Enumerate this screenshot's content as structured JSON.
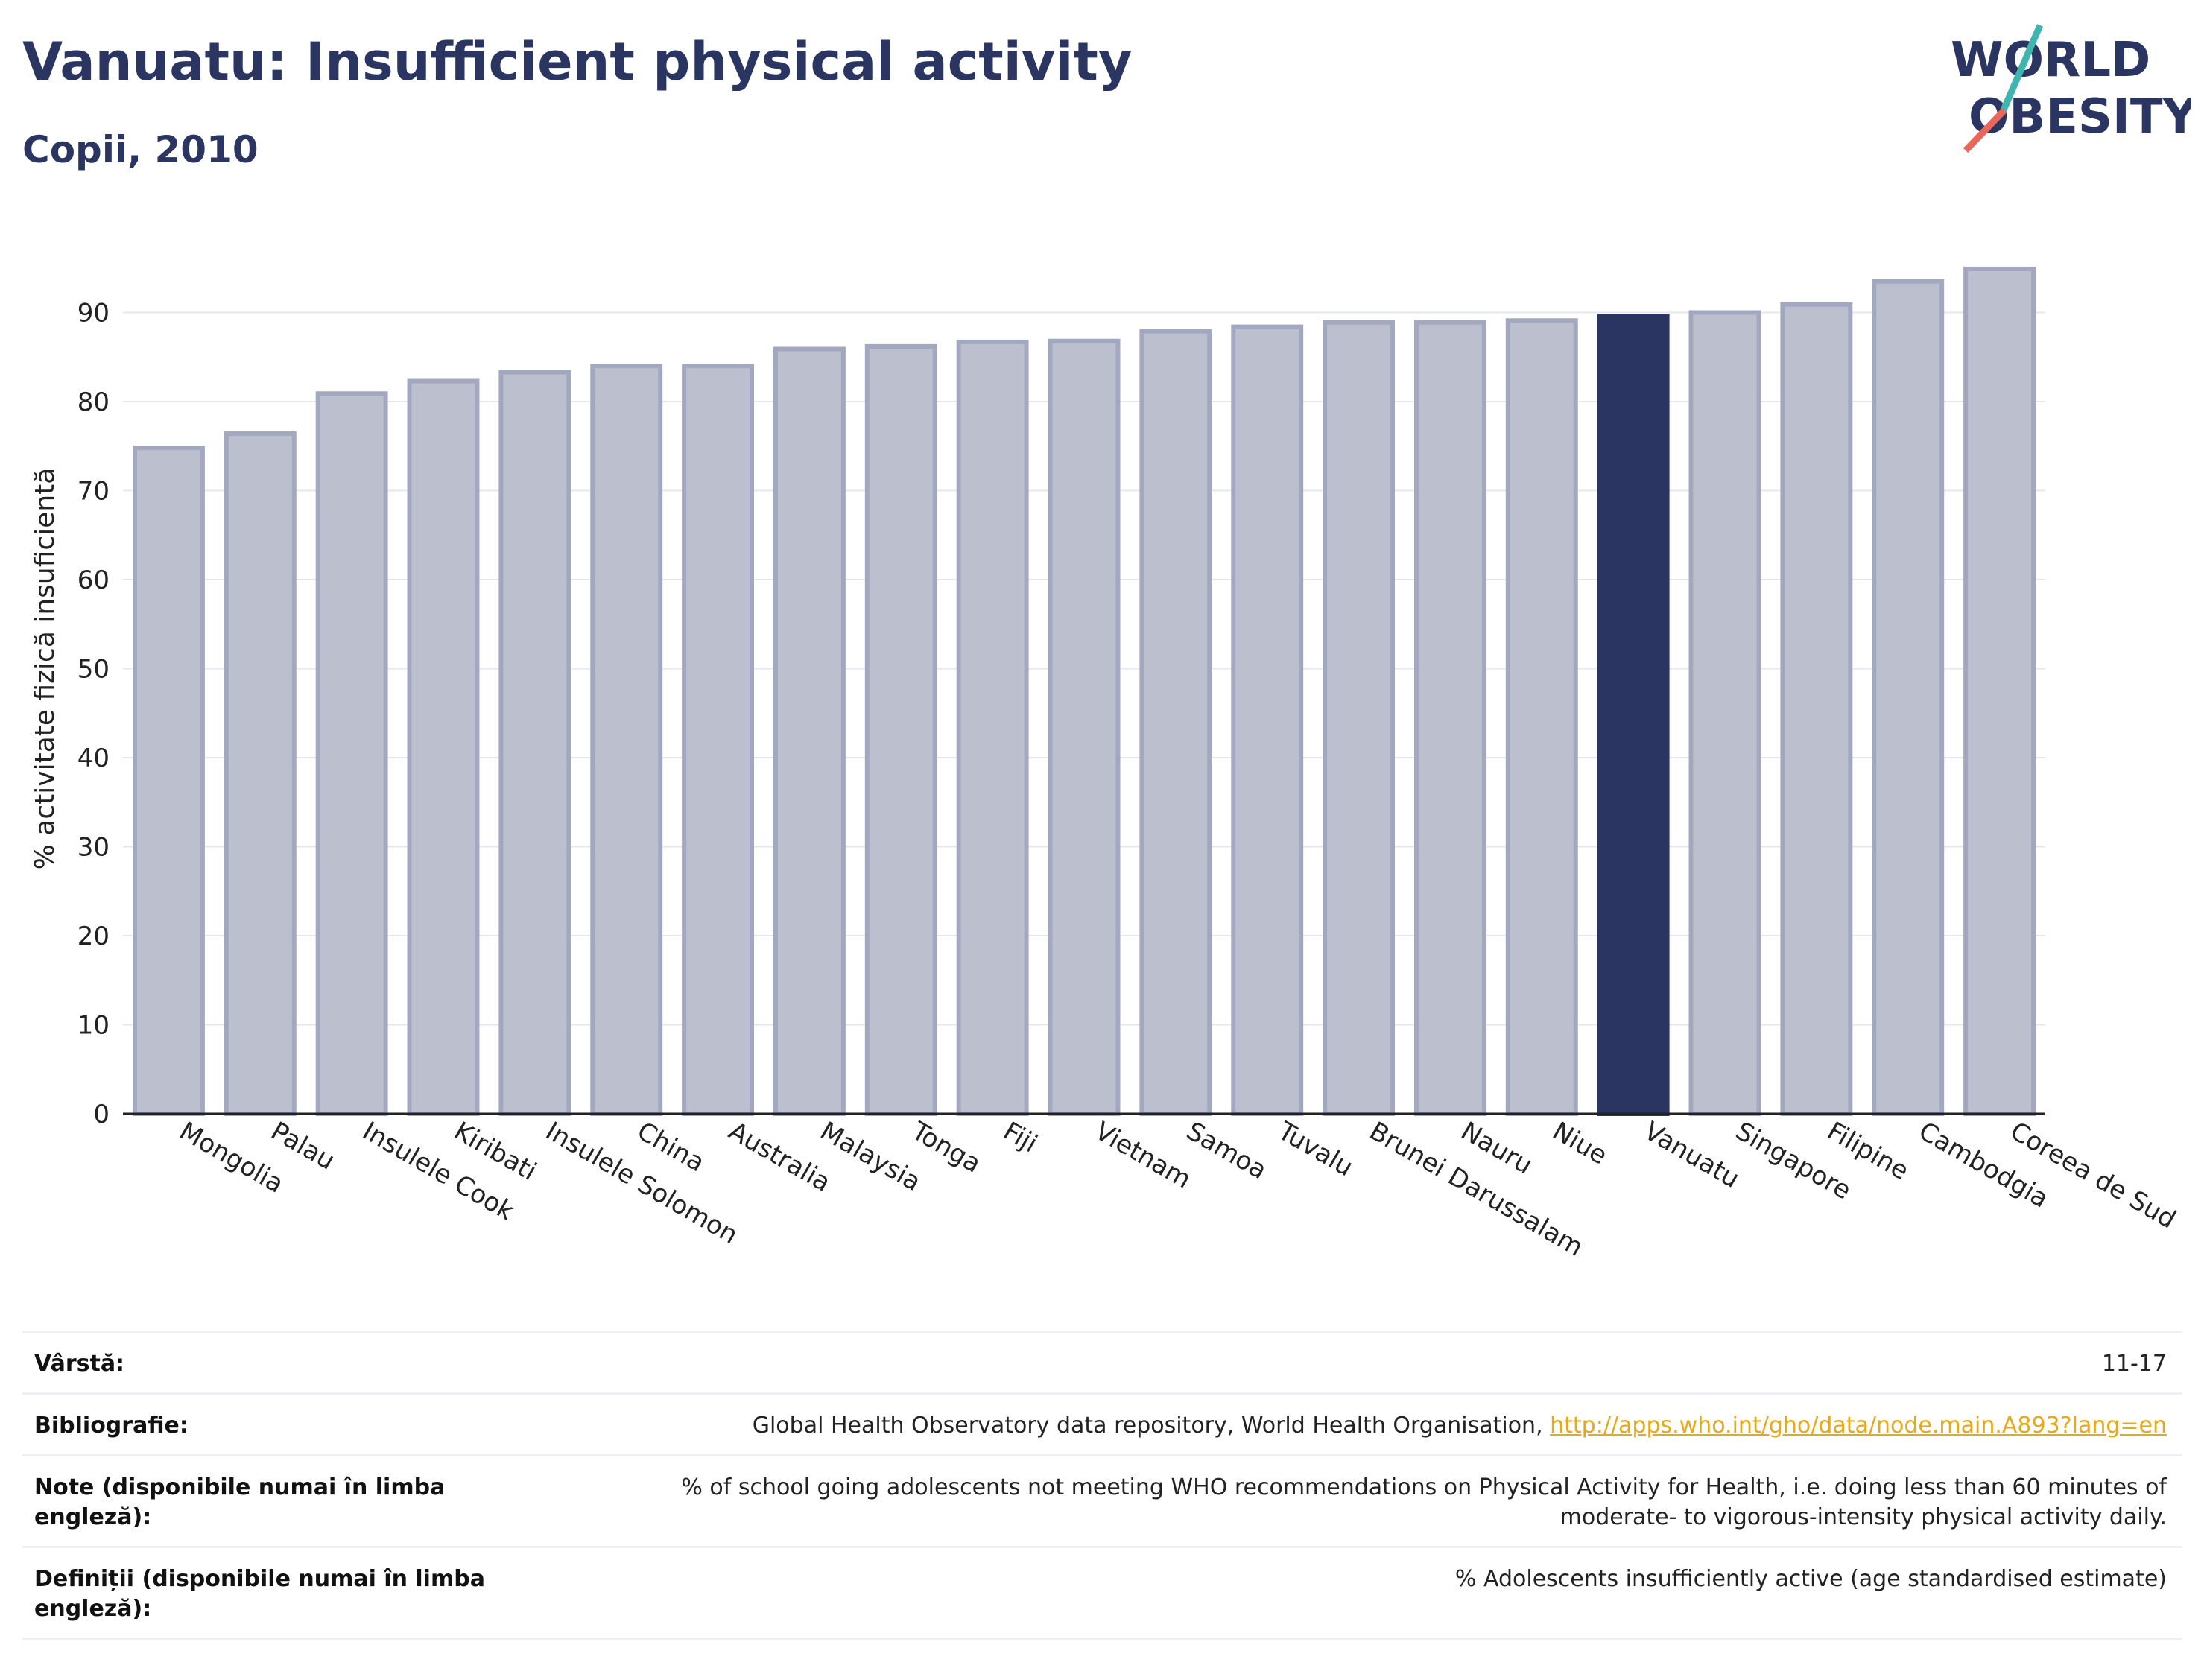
{
  "header": {
    "title": "Vanuatu: Insufficient physical activity",
    "subtitle": "Copii, 2010"
  },
  "logo": {
    "line1": "WORLD",
    "line2": "OBESITY"
  },
  "colors": {
    "title": "#2b3562",
    "bar_default": "#bcc0ce",
    "bar_border": "#a2a8c0",
    "bar_highlight": "#2b3562",
    "grid": "#e6e7ec",
    "link": "#e8a817",
    "logo_slash_top": "#3fb5b0",
    "logo_slash_bottom": "#e8665a"
  },
  "chart_data": {
    "type": "bar",
    "categories": [
      "Mongolia",
      "Palau",
      "Insulele Cook",
      "Kiribati",
      "Insulele Solomon",
      "China",
      "Australia",
      "Malaysia",
      "Tonga",
      "Fiji",
      "Vietnam",
      "Samoa",
      "Tuvalu",
      "Brunei Darussalam",
      "Nauru",
      "Niue",
      "Vanuatu",
      "Singapore",
      "Filipine",
      "Cambodgia",
      "Coreea de Sud"
    ],
    "values": [
      74.8,
      76.4,
      80.9,
      82.3,
      83.3,
      84.0,
      84.0,
      85.9,
      86.2,
      86.7,
      86.8,
      87.9,
      88.4,
      88.9,
      88.9,
      89.1,
      89.6,
      90.0,
      90.9,
      93.5,
      94.9
    ],
    "highlight": "Vanuatu",
    "title": "",
    "xlabel": "",
    "ylabel": "% activitate fizică insuficientă",
    "ylim": [
      0,
      100
    ],
    "yticks": [
      0,
      10,
      20,
      30,
      40,
      50,
      60,
      70,
      80,
      90
    ],
    "grid": true
  },
  "meta": [
    {
      "label": "Vârstă:",
      "value": "11-17"
    },
    {
      "label": "Bibliografie:",
      "value": "Global Health Observatory data repository, World Health Organisation, ",
      "link": "http://apps.who.int/gho/data/node.main.A893?lang=en"
    },
    {
      "label": "Note (disponibile numai în limba engleză):",
      "value": "% of school going adolescents not meeting WHO recommendations on Physical Activity for Health, i.e. doing less than 60 minutes of moderate- to vigorous-intensity physical activity daily."
    },
    {
      "label": "Definiții (disponibile numai în limba engleză):",
      "value": "% Adolescents insufficiently active (age standardised estimate)"
    }
  ]
}
